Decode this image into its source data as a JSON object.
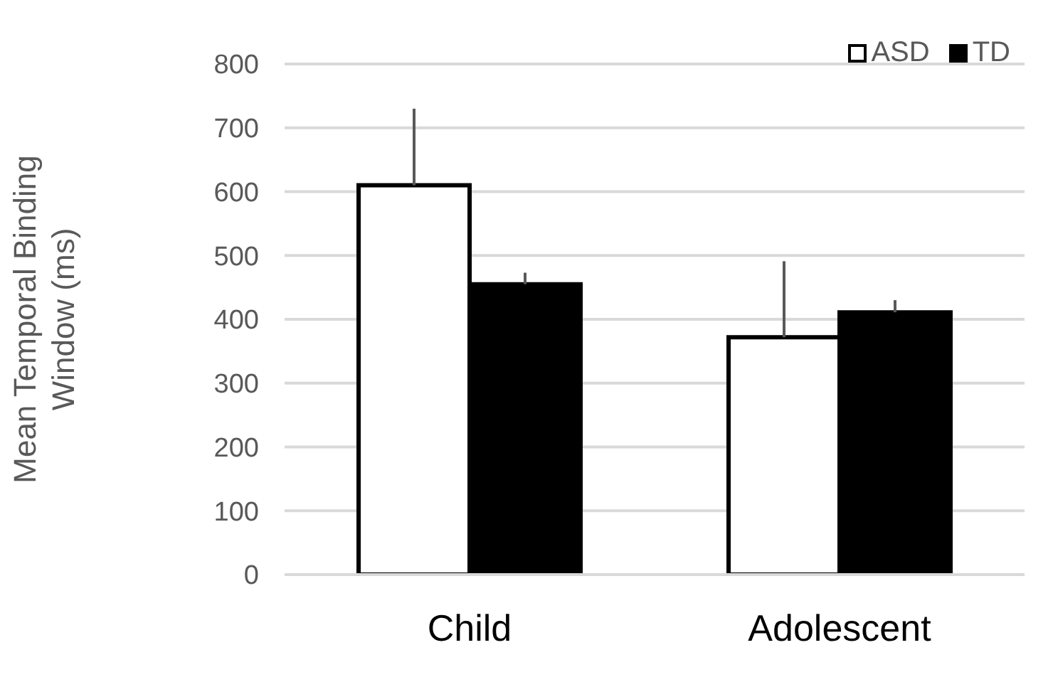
{
  "chart_data": {
    "type": "bar",
    "ylabel": "Mean Temporal Binding Window (ms)",
    "categories": [
      "Child",
      "Adolescent"
    ],
    "series": [
      {
        "name": "ASD",
        "color": "#ffffff",
        "values": [
          610,
          372
        ],
        "errors": [
          [
            610,
            730
          ],
          [
            372,
            491
          ]
        ]
      },
      {
        "name": "TD",
        "color": "#000000",
        "values": [
          455,
          411
        ],
        "errors": [
          [
            455,
            473
          ],
          [
            411,
            430
          ]
        ]
      }
    ],
    "ylim": [
      0,
      800
    ],
    "yticks": [
      0,
      100,
      200,
      300,
      400,
      500,
      600,
      700,
      800
    ],
    "grid": "y",
    "legend": "top right"
  }
}
